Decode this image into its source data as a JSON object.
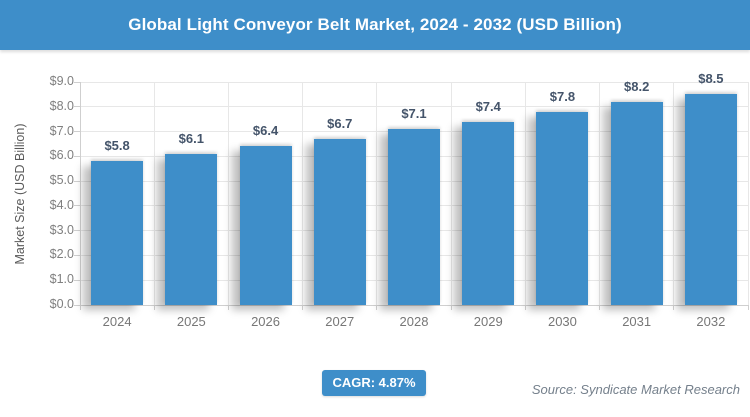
{
  "header": {
    "title": "Global Light Conveyor Belt Market, 2024 - 2032 (USD Billion)"
  },
  "chart_data": {
    "type": "bar",
    "title": "Global Light Conveyor Belt Market, 2024 - 2032 (USD Billion)",
    "categories": [
      "2024",
      "2025",
      "2026",
      "2027",
      "2028",
      "2029",
      "2030",
      "2031",
      "2032"
    ],
    "values": [
      5.8,
      6.1,
      6.4,
      6.7,
      7.1,
      7.4,
      7.8,
      8.2,
      8.5
    ],
    "value_labels": [
      "$5.8",
      "$6.1",
      "$6.4",
      "$6.7",
      "$7.1",
      "$7.4",
      "$7.8",
      "$8.2",
      "$8.5"
    ],
    "xlabel": "",
    "ylabel": "Market Size (USD Billion)",
    "ylim": [
      0,
      9
    ],
    "ytick_step": 1,
    "ytick_labels": [
      "$0.0",
      "$1.0",
      "$2.0",
      "$3.0",
      "$4.0",
      "$5.0",
      "$6.0",
      "$7.0",
      "$8.0",
      "$9.0"
    ],
    "grid": true,
    "legend": "none",
    "bar_color": "#3E8EC9"
  },
  "footer": {
    "cagr_label": "CAGR: 4.87%",
    "source": "Source: Syndicate Market Research"
  },
  "colors": {
    "accent_blue": "#3E8EC9",
    "value_label": "#44546A",
    "axis_text": "#7F7F7F",
    "grid_line": "#E7E7E7"
  }
}
